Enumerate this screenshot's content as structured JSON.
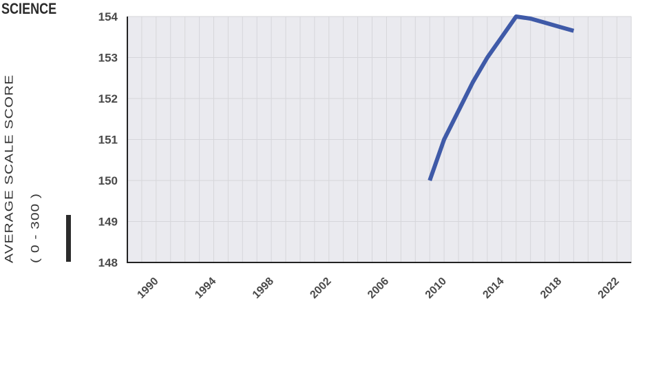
{
  "chart_data": {
    "type": "line",
    "title": "SCIENCE",
    "ylabel_line1": "AVERAGE  SCALE SCORE",
    "ylabel_line2": "( 0 - 300 )",
    "xlim": [
      1988,
      2023
    ],
    "ylim": [
      148,
      154
    ],
    "xticks": [
      1990,
      1994,
      1998,
      2002,
      2006,
      2010,
      2014,
      2018,
      2022
    ],
    "yticks": [
      148,
      149,
      150,
      151,
      152,
      153,
      154
    ],
    "grid": true,
    "series": [
      {
        "color": "#3f5aa8",
        "x": [
          2009,
          2010,
          2011,
          2012,
          2013,
          2014,
          2015,
          2016,
          2017,
          2018,
          2019
        ],
        "y": [
          150.0,
          151.0,
          151.7,
          152.4,
          153.0,
          153.5,
          154.0,
          153.95,
          153.85,
          153.75,
          153.65
        ]
      }
    ],
    "colors": {
      "plot_bg": "#eaeaef",
      "grid": "#d6d6da",
      "axis": "#222222"
    }
  }
}
